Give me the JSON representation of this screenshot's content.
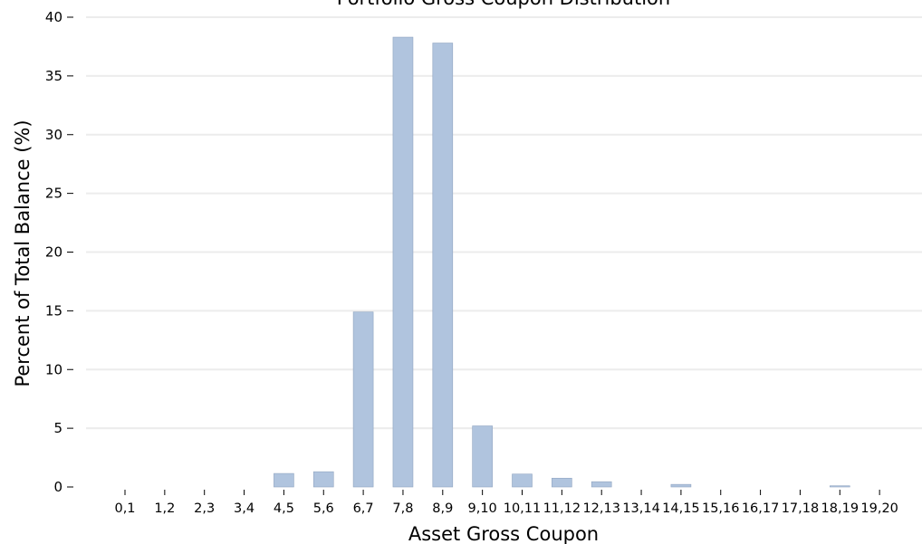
{
  "chart_data": {
    "type": "bar",
    "title": "Portfolio Gross Coupon Distribution",
    "xlabel": "Asset Gross Coupon",
    "ylabel": "Percent of Total Balance (%)",
    "ylim": [
      0,
      40
    ],
    "yticks": [
      0,
      5,
      10,
      15,
      20,
      25,
      30,
      35,
      40
    ],
    "grid": true,
    "categories": [
      "0,1",
      "1,2",
      "2,3",
      "3,4",
      "4,5",
      "5,6",
      "6,7",
      "7,8",
      "8,9",
      "9,10",
      "10,11",
      "11,12",
      "12,13",
      "13,14",
      "14,15",
      "15,16",
      "16,17",
      "17,18",
      "18,19",
      "19,20"
    ],
    "values": [
      0,
      0,
      0,
      0,
      1.15,
      1.3,
      14.9,
      38.3,
      37.8,
      5.2,
      1.1,
      0.75,
      0.45,
      0,
      0.22,
      0,
      0,
      0,
      0.1,
      0
    ],
    "bar_color": "#b0c4de"
  }
}
